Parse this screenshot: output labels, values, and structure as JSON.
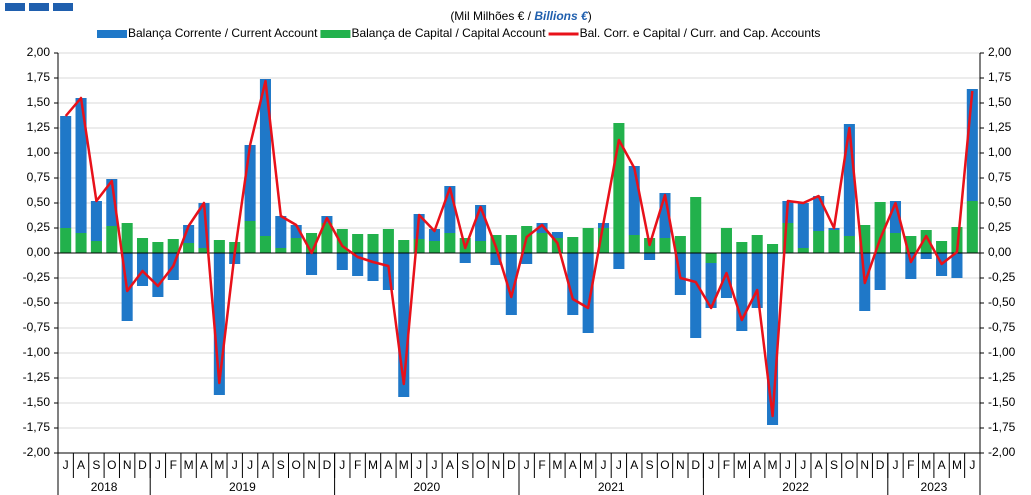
{
  "chart_data": {
    "type": "bar-line",
    "subtitle": [
      "(Mil Milhões  € / ",
      "Billions €",
      ")"
    ],
    "categories": [
      "J",
      "A",
      "S",
      "O",
      "N",
      "D",
      "J",
      "F",
      "M",
      "A",
      "M",
      "J",
      "J",
      "A",
      "S",
      "O",
      "N",
      "D",
      "J",
      "F",
      "M",
      "A",
      "M",
      "J",
      "J",
      "A",
      "S",
      "O",
      "N",
      "D",
      "J",
      "F",
      "M",
      "A",
      "M",
      "J",
      "J",
      "A",
      "S",
      "O",
      "N",
      "D",
      "J",
      "F",
      "M",
      "A",
      "M",
      "J",
      "J",
      "A",
      "S",
      "O",
      "N",
      "D",
      "J",
      "F",
      "M",
      "A",
      "M",
      "J"
    ],
    "x_groups": [
      {
        "label": "2018",
        "categories": 6
      },
      {
        "label": "2019",
        "categories": 12
      },
      {
        "label": "2020",
        "categories": 12
      },
      {
        "label": "2021",
        "categories": 12
      },
      {
        "label": "2022",
        "categories": 12
      },
      {
        "label": "2023",
        "categories": 6
      }
    ],
    "series": [
      {
        "name": "Balança Corrente / Current Account",
        "kind": "bar",
        "color": "#1f78c8",
        "values": [
          1.12,
          1.35,
          0.4,
          0.47,
          -0.68,
          -0.33,
          -0.44,
          -0.27,
          0.18,
          0.45,
          -1.42,
          -0.11,
          0.76,
          1.57,
          0.32,
          0.13,
          -0.22,
          0.07,
          -0.17,
          -0.23,
          -0.28,
          -0.37,
          -1.44,
          0.25,
          0.12,
          0.47,
          -0.1,
          0.36,
          -0.12,
          -0.62,
          -0.11,
          0.1,
          0.06,
          -0.62,
          -0.8,
          0.05,
          -0.16,
          0.69,
          -0.07,
          0.45,
          -0.42,
          -0.85,
          -0.45,
          -0.45,
          -0.78,
          -0.55,
          -1.72,
          0.22,
          0.45,
          0.35,
          0.02,
          1.12,
          -0.58,
          -0.37,
          0.32,
          -0.26,
          -0.06,
          -0.23,
          -0.25,
          1.12
        ]
      },
      {
        "name": "Balança de Capital / Capital Account",
        "kind": "bar",
        "color": "#22b14c",
        "values": [
          0.25,
          0.2,
          0.12,
          0.27,
          0.3,
          0.15,
          0.11,
          0.14,
          0.1,
          0.05,
          0.13,
          0.11,
          0.32,
          0.17,
          0.05,
          0.15,
          0.2,
          0.3,
          0.24,
          0.19,
          0.19,
          0.24,
          0.13,
          0.14,
          0.12,
          0.2,
          0.15,
          0.12,
          0.18,
          0.18,
          0.27,
          0.2,
          0.15,
          0.16,
          0.25,
          0.25,
          1.3,
          0.18,
          0.15,
          0.15,
          0.17,
          0.56,
          -0.1,
          0.25,
          0.11,
          0.18,
          0.09,
          0.3,
          0.05,
          0.22,
          0.23,
          0.17,
          0.28,
          0.51,
          0.2,
          0.17,
          0.23,
          0.12,
          0.26,
          0.52
        ]
      },
      {
        "name": "Bal. Corr. e Capital / Curr. and Cap. Accounts",
        "kind": "line",
        "color": "#e8111a",
        "values": [
          1.37,
          1.55,
          0.52,
          0.72,
          -0.38,
          -0.18,
          -0.33,
          -0.13,
          0.27,
          0.5,
          -1.3,
          0.0,
          1.08,
          1.72,
          0.37,
          0.28,
          0.0,
          0.35,
          0.07,
          -0.04,
          -0.09,
          -0.13,
          -1.31,
          0.38,
          0.22,
          0.65,
          0.05,
          0.46,
          0.06,
          -0.44,
          0.16,
          0.28,
          0.1,
          -0.46,
          -0.55,
          0.3,
          1.13,
          0.85,
          0.08,
          0.58,
          -0.25,
          -0.29,
          -0.55,
          -0.2,
          -0.67,
          -0.37,
          -1.63,
          0.52,
          0.5,
          0.57,
          0.25,
          1.25,
          -0.3,
          0.14,
          0.5,
          -0.09,
          0.17,
          -0.11,
          0.01,
          1.62
        ]
      }
    ],
    "ylim": [
      -2,
      2
    ],
    "yticks": [
      {
        "value": -2,
        "label": "-2,00"
      },
      {
        "value": -1.75,
        "label": "-1,75"
      },
      {
        "value": -1.5,
        "label": "-1,50"
      },
      {
        "value": -1.25,
        "label": "-1,25"
      },
      {
        "value": -1,
        "label": "-1,00"
      },
      {
        "value": -0.75,
        "label": "-0,75"
      },
      {
        "value": -0.5,
        "label": "-0,50"
      },
      {
        "value": -0.25,
        "label": "-0,25"
      },
      {
        "value": 0,
        "label": "0,00"
      },
      {
        "value": 0.25,
        "label": "0,25"
      },
      {
        "value": 0.5,
        "label": "0,50"
      },
      {
        "value": 0.75,
        "label": "0,75"
      },
      {
        "value": 1,
        "label": "1,00"
      },
      {
        "value": 1.25,
        "label": "1,25"
      },
      {
        "value": 1.5,
        "label": "1,50"
      },
      {
        "value": 1.75,
        "label": "1,75"
      },
      {
        "value": 2,
        "label": "2,00"
      }
    ],
    "grid": true
  }
}
